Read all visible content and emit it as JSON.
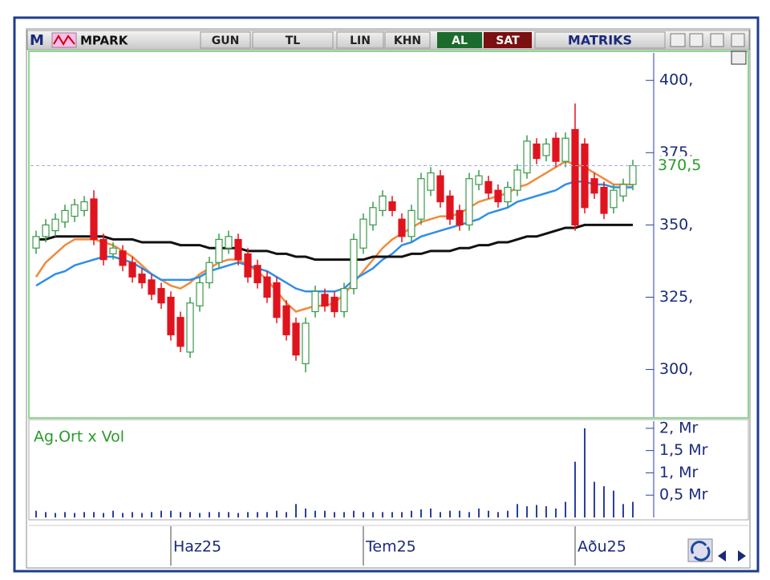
{
  "toolbar": {
    "logo": "M",
    "symbol": "MPARK",
    "period": "GUN",
    "currency": "TL",
    "scale": "LIN",
    "mode": "KHN",
    "buy": "AL",
    "sell": "SAT",
    "brand": "MATRIKS"
  },
  "chart_data": [
    {
      "type": "candlestick",
      "categories": [
        null,
        null,
        null,
        null,
        null,
        null,
        null,
        null,
        null,
        null,
        null,
        null,
        null,
        null,
        "Haz25",
        null,
        null,
        null,
        null,
        null,
        null,
        null,
        null,
        null,
        null,
        null,
        null,
        null,
        null,
        null,
        null,
        null,
        null,
        null,
        "Tem25",
        null,
        null,
        null,
        null,
        null,
        null,
        null,
        null,
        null,
        null,
        null,
        null,
        null,
        null,
        null,
        null,
        null,
        null,
        null,
        null,
        null,
        "Aðu25",
        null,
        null,
        null,
        null,
        null,
        null
      ],
      "open": [
        342,
        346,
        348,
        351,
        353,
        355,
        359,
        345,
        340,
        341,
        337,
        333,
        331,
        328,
        325,
        318,
        306,
        322,
        330,
        337,
        342,
        345,
        340,
        336,
        332,
        330,
        322,
        316,
        302,
        320,
        326,
        325,
        320,
        328,
        342,
        350,
        355,
        358,
        352,
        346,
        352,
        362,
        367,
        360,
        355,
        350,
        364,
        365,
        362,
        358,
        362,
        368,
        378,
        374,
        380,
        372,
        383,
        378,
        366,
        363,
        356,
        360,
        364
      ],
      "high": [
        348,
        352,
        354,
        357,
        359,
        360,
        362,
        347,
        344,
        343,
        339,
        335,
        333,
        330,
        327,
        320,
        325,
        332,
        339,
        347,
        348,
        347,
        342,
        338,
        334,
        332,
        324,
        318,
        318,
        329,
        328,
        327,
        330,
        347,
        354,
        358,
        362,
        360,
        354,
        357,
        368,
        370,
        369,
        362,
        357,
        368,
        369,
        367,
        364,
        365,
        371,
        381,
        380,
        380,
        382,
        382,
        392,
        380,
        368,
        365,
        364,
        366,
        372.5
      ],
      "low": [
        340,
        344,
        346,
        349,
        351,
        353,
        343,
        336,
        338,
        334,
        330,
        328,
        324,
        321,
        310,
        306,
        304,
        320,
        328,
        335,
        340,
        336,
        330,
        328,
        323,
        316,
        310,
        303,
        299,
        318,
        320,
        318,
        318,
        326,
        340,
        348,
        353,
        353,
        344,
        344,
        350,
        360,
        356,
        350,
        348,
        348,
        362,
        359,
        356,
        356,
        360,
        366,
        371,
        372,
        370,
        370,
        348,
        354,
        359,
        352,
        354,
        358,
        362
      ],
      "close": [
        346,
        350,
        352,
        355,
        357,
        358,
        345,
        338,
        342,
        336,
        332,
        330,
        326,
        323,
        312,
        308,
        323,
        330,
        337,
        345,
        346,
        338,
        332,
        330,
        325,
        318,
        312,
        305,
        316,
        327,
        322,
        320,
        328,
        345,
        352,
        356,
        360,
        355,
        346,
        355,
        366,
        368,
        358,
        352,
        350,
        366,
        367,
        361,
        358,
        363,
        369,
        379,
        373,
        378,
        372,
        380,
        350,
        356,
        361,
        354,
        362,
        364,
        370.5
      ],
      "up_color": "#3a9a4a",
      "down_color": "#e0141e",
      "series": [
        {
          "color": "#f08a3c",
          "values": [
            332,
            337,
            340,
            343,
            345,
            345,
            345,
            344,
            343,
            341,
            339,
            336,
            333,
            331,
            329,
            328,
            330,
            333,
            335,
            337,
            338,
            338,
            336,
            334,
            331,
            327,
            323,
            320,
            321,
            322,
            322,
            323,
            326,
            330,
            334,
            338,
            342,
            345,
            347,
            349,
            351,
            352,
            353,
            353,
            354,
            356,
            358,
            359,
            360,
            361,
            363,
            364,
            366,
            368,
            370,
            372,
            371,
            370,
            368,
            366,
            364,
            364,
            364
          ]
        },
        {
          "color": "#2f8fe8",
          "values": [
            329,
            331,
            333,
            334,
            336,
            337,
            338,
            339,
            339,
            338,
            337,
            335,
            333,
            331,
            331,
            331,
            331,
            332,
            334,
            335,
            336,
            337,
            336,
            335,
            334,
            332,
            330,
            328,
            327,
            327,
            327,
            327,
            328,
            331,
            333,
            335,
            338,
            340,
            343,
            344,
            346,
            347,
            348,
            349,
            350,
            351,
            352,
            354,
            355,
            356,
            358,
            359,
            360,
            361,
            362,
            364,
            365,
            365,
            364,
            364,
            363,
            363,
            363
          ]
        },
        {
          "color": "#111111",
          "values": [
            345,
            345,
            346,
            346,
            346,
            346,
            346,
            346,
            345,
            345,
            345,
            344,
            344,
            344,
            344,
            343,
            343,
            343,
            342,
            342,
            342,
            342,
            341,
            341,
            341,
            340,
            340,
            339,
            339,
            338,
            338,
            338,
            338,
            338,
            338,
            339,
            339,
            339,
            339,
            340,
            340,
            341,
            341,
            341,
            342,
            342,
            343,
            343,
            344,
            344,
            345,
            346,
            346,
            347,
            348,
            349,
            349,
            350,
            350,
            350,
            350,
            350,
            350
          ]
        }
      ],
      "last_label": "370,5",
      "ylim": [
        283.5,
        409.5
      ],
      "yticks": [
        {
          "value": 300,
          "label": "300,"
        },
        {
          "value": 325,
          "label": "325,"
        },
        {
          "value": 350,
          "label": "350,"
        },
        {
          "value": 375,
          "label": "375,"
        },
        {
          "value": 400,
          "label": "400,"
        }
      ]
    },
    {
      "type": "bar",
      "title": "Ag.Ort x Vol",
      "color": "#2b3fa0",
      "values": [
        0.15,
        0.12,
        0.1,
        0.12,
        0.1,
        0.12,
        0.12,
        0.1,
        0.15,
        0.1,
        0.12,
        0.1,
        0.12,
        0.15,
        0.15,
        0.12,
        0.12,
        0.1,
        0.12,
        0.12,
        0.12,
        0.1,
        0.12,
        0.12,
        0.12,
        0.15,
        0.12,
        0.3,
        0.2,
        0.15,
        0.15,
        0.12,
        0.12,
        0.15,
        0.12,
        0.12,
        0.12,
        0.12,
        0.12,
        0.15,
        0.18,
        0.2,
        0.12,
        0.15,
        0.15,
        0.12,
        0.2,
        0.15,
        0.12,
        0.15,
        0.3,
        0.25,
        0.28,
        0.25,
        0.2,
        0.35,
        1.25,
        2.0,
        0.8,
        0.7,
        0.6,
        0.3,
        0.35
      ],
      "ylim": [
        0,
        2.16
      ],
      "yticks": [
        {
          "value": 0.5,
          "label": "0,5 Mr"
        },
        {
          "value": 1,
          "label": "1, Mr"
        },
        {
          "value": 1.5,
          "label": "1,5 Mr"
        },
        {
          "value": 2,
          "label": "2, Mr"
        }
      ]
    }
  ]
}
